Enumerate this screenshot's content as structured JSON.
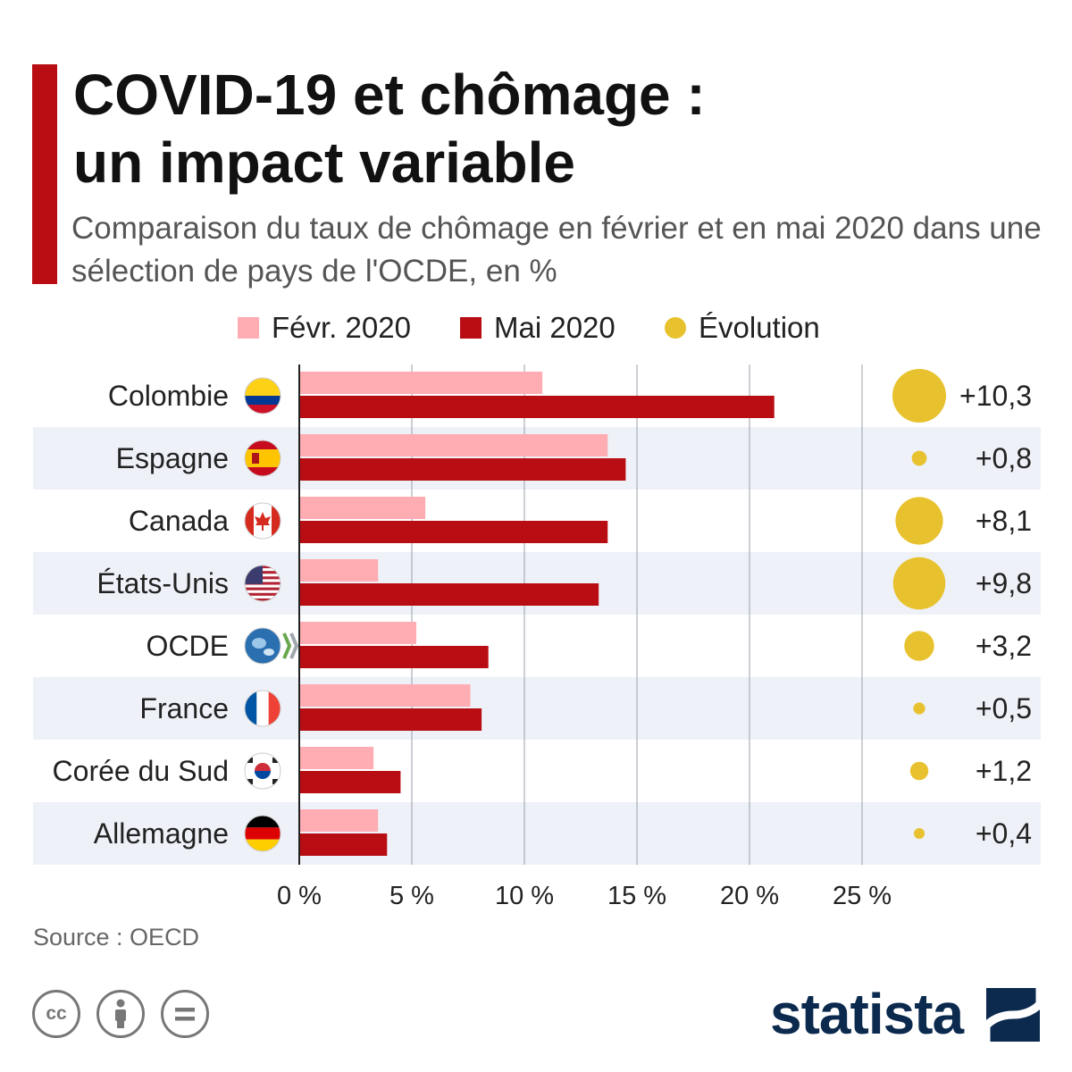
{
  "title_lines": [
    "COVID-19 et chômage :",
    "un impact variable"
  ],
  "subtitle": "Comparaison du taux de chômage en février et en mai 2020 dans une sélection de pays de l'OCDE, en %",
  "legend": [
    {
      "label": "Févr. 2020",
      "color": "#ffadb3",
      "shape": "square"
    },
    {
      "label": "Mai 2020",
      "color": "#b80d12",
      "shape": "square"
    },
    {
      "label": "Évolution",
      "color": "#e8c22e",
      "shape": "circle"
    }
  ],
  "source": "Source : OECD",
  "brand": "statista",
  "license_icons": [
    "cc-icon",
    "attribution-icon",
    "no-derivatives-icon"
  ],
  "colors": {
    "feb": "#ffadb3",
    "may": "#b80d12",
    "evolution": "#e8c22e",
    "accent": "#b80d12",
    "band": "#eef1f8",
    "brand": "#0b2a4e"
  },
  "chart_data": {
    "type": "bar",
    "orientation": "horizontal",
    "categories": [
      "Colombie",
      "Espagne",
      "Canada",
      "États-Unis",
      "OCDE",
      "France",
      "Corée du Sud",
      "Allemagne"
    ],
    "flags": [
      "colombia-flag-icon",
      "spain-flag-icon",
      "canada-flag-icon",
      "usa-flag-icon",
      "oecd-logo-icon",
      "france-flag-icon",
      "south-korea-flag-icon",
      "germany-flag-icon"
    ],
    "series": [
      {
        "name": "Févr. 2020",
        "values": [
          10.8,
          13.7,
          5.6,
          3.5,
          5.2,
          7.6,
          3.3,
          3.5
        ]
      },
      {
        "name": "Mai 2020",
        "values": [
          21.1,
          14.5,
          13.7,
          13.3,
          8.4,
          8.1,
          4.5,
          3.9
        ]
      }
    ],
    "evolution": {
      "name": "Évolution",
      "labels": [
        "+10,3",
        "+0,8",
        "+8,1",
        "+9,8",
        "+3,2",
        "+0,5",
        "+1,2",
        "+0,4"
      ],
      "values": [
        10.3,
        0.8,
        8.1,
        9.8,
        3.2,
        0.5,
        1.2,
        0.4
      ]
    },
    "x_ticks": [
      "0 %",
      "5 %",
      "10 %",
      "15 %",
      "20 %",
      "25 %"
    ],
    "x_tick_values": [
      0,
      5,
      10,
      15,
      20,
      25
    ],
    "xlim": [
      0,
      25
    ],
    "grid": true,
    "legend_position": "top"
  }
}
